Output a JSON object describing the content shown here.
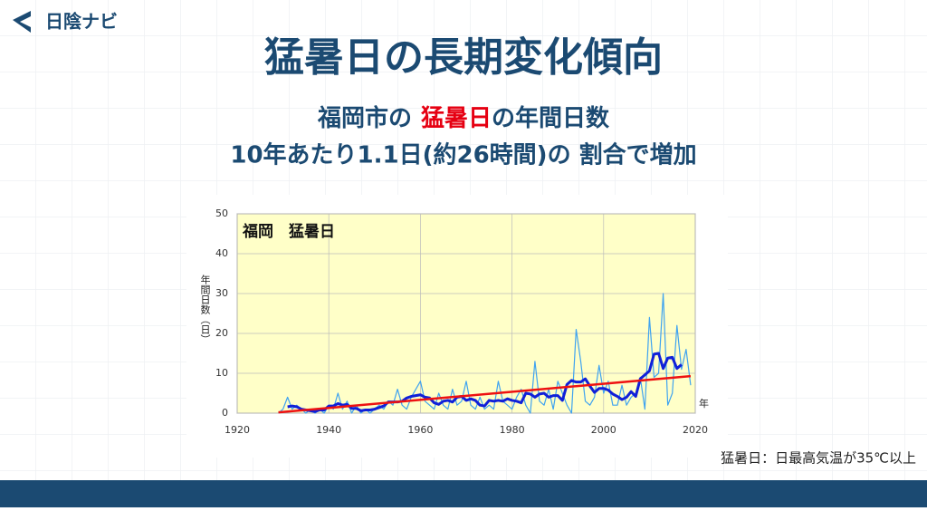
{
  "header": {
    "logo": "日陰ナビ",
    "title": "猛暑日の長期変化傾向",
    "subtitle_1": [
      "福岡市の",
      "猛暑日",
      "の年間日数"
    ],
    "subtitle_2": "10年あたり1.1日(約26時間)の 割合で増加"
  },
  "chart_data": {
    "type": "line",
    "title": "福岡　猛暑日",
    "y_label": "年間日数（日）",
    "x_label": "年",
    "x": [
      1929,
      1930,
      1931,
      1932,
      1933,
      1934,
      1935,
      1936,
      1937,
      1938,
      1939,
      1940,
      1941,
      1942,
      1943,
      1944,
      1945,
      1946,
      1947,
      1948,
      1949,
      1950,
      1951,
      1952,
      1953,
      1954,
      1955,
      1956,
      1957,
      1958,
      1959,
      1960,
      1961,
      1962,
      1963,
      1964,
      1965,
      1966,
      1967,
      1968,
      1969,
      1970,
      1971,
      1972,
      1973,
      1974,
      1975,
      1976,
      1977,
      1978,
      1979,
      1980,
      1981,
      1982,
      1983,
      1984,
      1985,
      1986,
      1987,
      1988,
      1989,
      1990,
      1991,
      1992,
      1993,
      1994,
      1995,
      1996,
      1997,
      1998,
      1999,
      2000,
      2001,
      2002,
      2003,
      2004,
      2005,
      2006,
      2007,
      2008,
      2009,
      2010,
      2011,
      2012,
      2013,
      2014,
      2015,
      2016,
      2017,
      2018,
      2019
    ],
    "series": [
      {
        "color": "#3fa3f0",
        "width": 1.2,
        "values": [
          0,
          1,
          4,
          1,
          2,
          1,
          0,
          1,
          0,
          1,
          0,
          2,
          1,
          5,
          1,
          3,
          0,
          2,
          0,
          1,
          0,
          1,
          2,
          1,
          3,
          2,
          6,
          2,
          1,
          4,
          6,
          8,
          3,
          2,
          1,
          5,
          2,
          1,
          6,
          2,
          3,
          8,
          2,
          1,
          4,
          1,
          2,
          1,
          8,
          3,
          2,
          1,
          4,
          6,
          2,
          0,
          13,
          3,
          2,
          6,
          1,
          8,
          5,
          2,
          0,
          21,
          13,
          3,
          2,
          4,
          12,
          5,
          8,
          2,
          2,
          7,
          2,
          4,
          5,
          9,
          1,
          24,
          9,
          10,
          30,
          2,
          5,
          22,
          11,
          16,
          7
        ]
      },
      {
        "color": "#1020d8",
        "width": 3,
        "values": [
          null,
          null,
          1.6,
          1.8,
          1.6,
          1.0,
          0.8,
          0.6,
          0.4,
          0.8,
          0.8,
          1.8,
          1.8,
          2.4,
          2.0,
          2.2,
          1.2,
          1.2,
          0.6,
          0.8,
          0.8,
          1.0,
          1.4,
          1.8,
          2.8,
          2.8,
          2.8,
          3.0,
          3.8,
          4.2,
          4.4,
          4.6,
          4.0,
          3.8,
          2.6,
          2.2,
          3.0,
          3.2,
          2.8,
          4.0,
          4.2,
          3.2,
          3.6,
          3.2,
          2.0,
          1.8,
          3.2,
          3.0,
          3.2,
          3.0,
          3.6,
          3.2,
          3.0,
          2.6,
          5.0,
          4.8,
          4.0,
          4.8,
          5.0,
          4.0,
          4.4,
          4.4,
          3.2,
          7.2,
          8.2,
          7.8,
          7.8,
          8.6,
          6.8,
          5.2,
          6.2,
          6.2,
          5.8,
          4.8,
          4.2,
          3.4,
          4.0,
          5.4,
          4.2,
          8.6,
          9.6,
          10.6,
          14.8,
          15.0,
          11.2,
          13.8,
          14.0,
          11.2,
          12.2,
          null,
          null
        ]
      }
    ],
    "trend": {
      "color": "#ee1111",
      "x": [
        1929,
        2019
      ],
      "values": [
        0.2,
        9.3
      ]
    },
    "xlim": [
      1920,
      2020
    ],
    "xticks": [
      1920,
      1940,
      1960,
      1980,
      2000,
      2020
    ],
    "ylim": [
      0,
      50
    ],
    "yticks": [
      0,
      10,
      20,
      30,
      40,
      50
    ],
    "grid": true,
    "plot_color": "#ffffc8"
  },
  "footnote": "猛暑日：日最高気温が35℃以上"
}
